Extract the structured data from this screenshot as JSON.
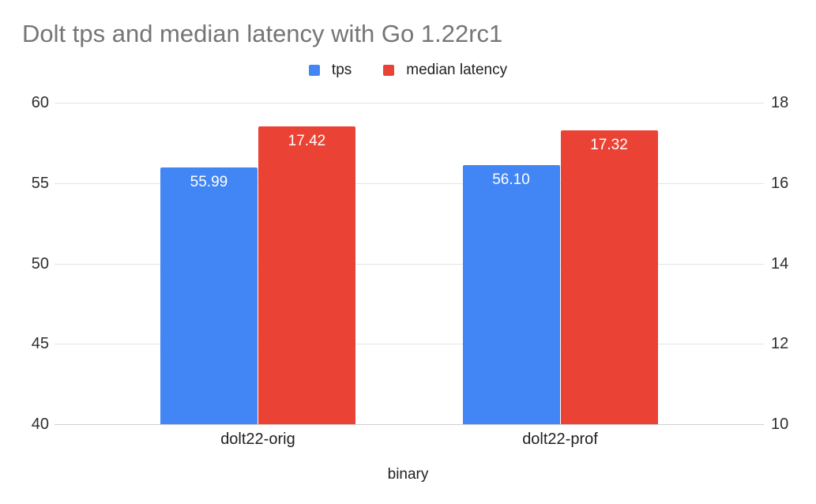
{
  "chart_data": {
    "type": "bar",
    "title": "Dolt tps and median latency with Go 1.22rc1",
    "categories": [
      "dolt22-orig",
      "dolt22-prof"
    ],
    "series": [
      {
        "name": "tps",
        "color": "#4285f4",
        "axis": "left",
        "values": [
          55.99,
          56.1
        ],
        "labels": [
          "55.99",
          "56.10"
        ]
      },
      {
        "name": "median latency",
        "color": "#ea4335",
        "axis": "right",
        "values": [
          17.42,
          17.32
        ],
        "labels": [
          "17.42",
          "17.32"
        ]
      }
    ],
    "xlabel": "binary",
    "axes": {
      "left": {
        "min": 40,
        "max": 60,
        "ticks": [
          60,
          55,
          50,
          45,
          40
        ]
      },
      "right": {
        "min": 10,
        "max": 18,
        "ticks": [
          18,
          16,
          14,
          12,
          10
        ]
      }
    },
    "legend_position": "top",
    "grid": true,
    "background": "#ffffff"
  }
}
